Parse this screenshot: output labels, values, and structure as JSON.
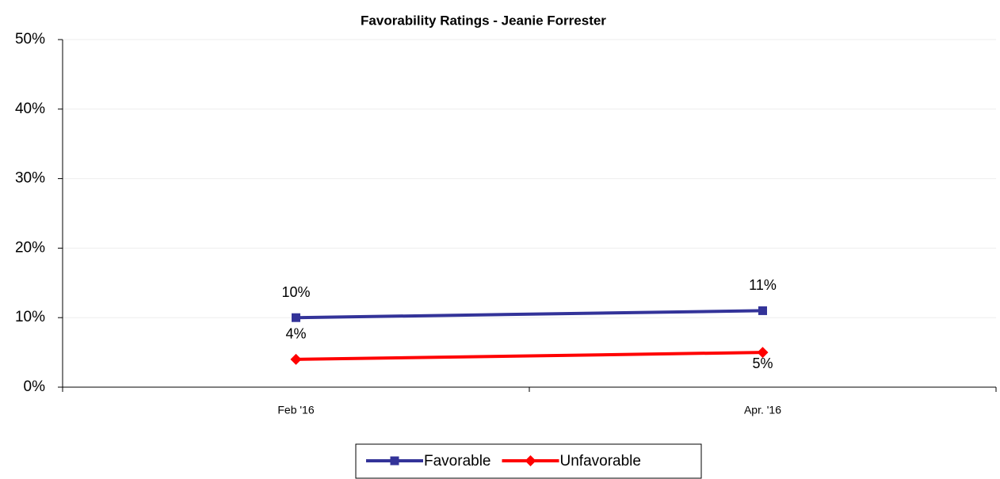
{
  "chart_data": {
    "type": "line",
    "title": "Favorability Ratings - Jeanie Forrester",
    "categories": [
      "Feb '16",
      "Apr. '16"
    ],
    "series": [
      {
        "name": "Favorable",
        "color": "#333399",
        "marker": "square",
        "values": [
          10,
          11
        ],
        "value_labels": [
          "10%",
          "11%"
        ]
      },
      {
        "name": "Unfavorable",
        "color": "#ff0000",
        "marker": "diamond",
        "values": [
          4,
          5
        ],
        "value_labels": [
          "4%",
          "5%"
        ]
      }
    ],
    "ylim": [
      0,
      50
    ],
    "yticks": [
      {
        "value": 0,
        "label": "0%"
      },
      {
        "value": 10,
        "label": "10%"
      },
      {
        "value": 20,
        "label": "20%"
      },
      {
        "value": 30,
        "label": "30%"
      },
      {
        "value": 40,
        "label": "40%"
      },
      {
        "value": 50,
        "label": "50%"
      }
    ],
    "grid": true,
    "legend": "bottom"
  }
}
